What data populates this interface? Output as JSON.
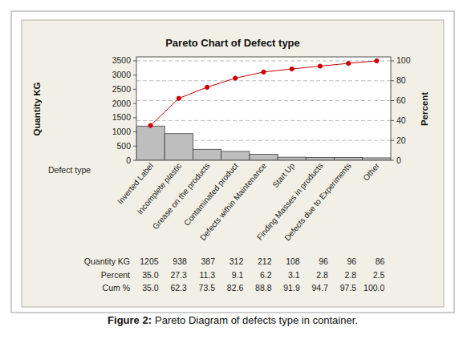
{
  "chart_data": {
    "type": "pareto",
    "title": "Pareto Chart of Defect type",
    "x_label": "Defect type",
    "y_label": "Quantity KG",
    "y2_label": "Percent",
    "categories": [
      "Inverted Label",
      "Incomplete plastic",
      "Grease on the products",
      "Contaminated product",
      "Defects within Maintenance",
      "Start Up",
      "Finding Masses in products",
      "Defects due to Experiments",
      "Other"
    ],
    "series": [
      {
        "name": "Quantity KG",
        "type": "bar",
        "color": "#bebebe",
        "values": [
          1205,
          938,
          387,
          312,
          212,
          108,
          96,
          96,
          86
        ]
      },
      {
        "name": "Percent",
        "values": [
          35.0,
          27.3,
          11.3,
          9.1,
          6.2,
          3.1,
          2.8,
          2.8,
          2.5
        ],
        "value_labels": [
          "35.0",
          "27.3",
          "11.3",
          "9.1",
          "6.2",
          "3.1",
          "2.8",
          "2.8",
          "2.5"
        ]
      },
      {
        "name": "Cum %",
        "type": "line",
        "axis": "y2",
        "color": "#cc0000",
        "marker": "circle",
        "values": [
          35.0,
          62.3,
          73.5,
          82.6,
          88.8,
          91.9,
          94.7,
          97.5,
          100.0
        ],
        "value_labels": [
          "35.0",
          "62.3",
          "73.5",
          "82.6",
          "88.8",
          "91.9",
          "94.7",
          "97.5",
          "100.0"
        ]
      }
    ],
    "ylim": [
      0,
      3640
    ],
    "yticks": [
      0,
      500,
      1000,
      1500,
      2000,
      2500,
      3000,
      3500
    ],
    "y2lim": [
      0,
      104
    ],
    "y2ticks": [
      0,
      20,
      40,
      60,
      80,
      100
    ],
    "grid": true
  },
  "caption": {
    "label": "Figure 2:",
    "text": "Pareto Diagram of defects type in container."
  }
}
